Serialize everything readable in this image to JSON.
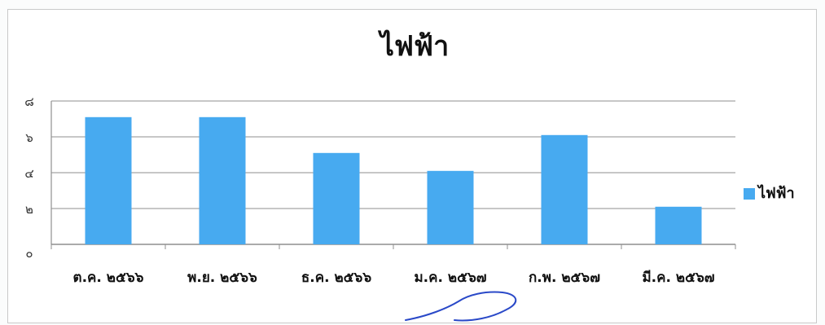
{
  "chart_data": {
    "type": "bar",
    "title": "ไฟฟ้า",
    "categories": [
      "ต.ค. ๒๕๖๖",
      "พ.ย. ๒๕๖๖",
      "ธ.ค. ๒๕๖๖",
      "ม.ค. ๒๕๖๗",
      "ก.พ. ๒๕๖๗",
      "มี.ค. ๒๕๖๗"
    ],
    "series": [
      {
        "name": "ไฟฟ้า",
        "values": [
          7.1,
          7.1,
          5.1,
          4.1,
          6.1,
          2.1
        ],
        "color": "#47aaf0"
      }
    ],
    "ylim": [
      0,
      8
    ],
    "yticks": [
      "๐",
      "๒",
      "๔",
      "๖",
      "๘"
    ],
    "yticks_values": [
      0,
      2,
      4,
      6,
      8
    ],
    "grid": true,
    "legend_position": "right",
    "colors": {
      "grid": "#8f8f8f",
      "axis": "#8f8f8f",
      "bar": "#47aaf0",
      "signature": "#2a49c8"
    }
  }
}
